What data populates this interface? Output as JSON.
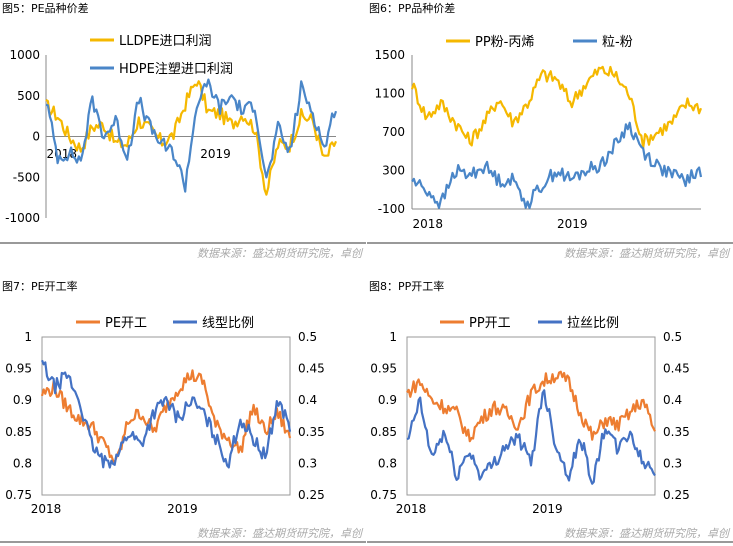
{
  "panels": [
    {
      "caption": "图5：PE品种价差",
      "source": "数据来源：盛达期货研究院，卓创"
    },
    {
      "caption": "图6：PP品种价差",
      "source": "数据来源：盛达期货研究院，卓创"
    },
    {
      "caption": "图7：PE开工率",
      "source": "数据来源：盛达期货研究院，卓创"
    },
    {
      "caption": "图8：PP开工率",
      "source": "数据来源：盛达期货研究院，卓创"
    }
  ],
  "chart_data": [
    {
      "type": "line",
      "x_tick_labels": [
        "2018",
        "2019"
      ],
      "ylim": [
        -1000,
        1000
      ],
      "yticks": [
        -1000,
        -500,
        0,
        500,
        1000
      ],
      "legend_position": "top-center",
      "series": [
        {
          "name": "LLDPE进口利润",
          "color": "#f5b800",
          "x": [
            0,
            0.04,
            0.08,
            0.12,
            0.16,
            0.2,
            0.24,
            0.28,
            0.32,
            0.36,
            0.4,
            0.44,
            0.48,
            0.52,
            0.56,
            0.6,
            0.64,
            0.68,
            0.72,
            0.76,
            0.8,
            0.84,
            0.88,
            0.92,
            0.96,
            1.0
          ],
          "values": [
            380,
            250,
            0,
            -150,
            120,
            150,
            -80,
            -100,
            200,
            80,
            -70,
            20,
            400,
            700,
            300,
            280,
            150,
            280,
            100,
            -700,
            -100,
            -100,
            250,
            200,
            -300,
            -50
          ]
        },
        {
          "name": "HDPE注塑进口利润",
          "color": "#4a86c8",
          "x": [
            0,
            0.04,
            0.08,
            0.12,
            0.16,
            0.2,
            0.24,
            0.28,
            0.32,
            0.36,
            0.4,
            0.44,
            0.48,
            0.52,
            0.56,
            0.6,
            0.64,
            0.68,
            0.72,
            0.76,
            0.8,
            0.84,
            0.88,
            0.92,
            0.96,
            1.0
          ],
          "values": [
            450,
            -250,
            -200,
            -300,
            450,
            0,
            200,
            -250,
            450,
            100,
            -100,
            -200,
            -600,
            400,
            650,
            350,
            500,
            300,
            400,
            -550,
            100,
            -200,
            600,
            300,
            -150,
            400
          ]
        }
      ]
    },
    {
      "type": "line",
      "x_tick_labels": [
        "2018",
        "2019"
      ],
      "ylim": [
        -100,
        1500
      ],
      "yticks": [
        -100,
        300,
        700,
        1100,
        1500
      ],
      "legend_position": "top-center",
      "series": [
        {
          "name": "PP粉-丙烯",
          "color": "#f5b800",
          "x": [
            0,
            0.05,
            0.1,
            0.15,
            0.2,
            0.25,
            0.3,
            0.35,
            0.4,
            0.45,
            0.5,
            0.55,
            0.6,
            0.65,
            0.7,
            0.75,
            0.8,
            0.85,
            0.9,
            0.95,
            1.0
          ],
          "values": [
            1200,
            850,
            1000,
            800,
            600,
            800,
            1050,
            800,
            1000,
            1300,
            1250,
            1000,
            1200,
            1350,
            1300,
            1100,
            600,
            700,
            800,
            1000,
            950
          ]
        },
        {
          "name": "粒-粉",
          "color": "#4a86c8",
          "x": [
            0,
            0.05,
            0.1,
            0.15,
            0.2,
            0.25,
            0.3,
            0.35,
            0.4,
            0.45,
            0.5,
            0.55,
            0.6,
            0.65,
            0.7,
            0.75,
            0.8,
            0.85,
            0.9,
            0.95,
            1.0
          ],
          "values": [
            200,
            100,
            -50,
            300,
            250,
            350,
            200,
            200,
            -50,
            150,
            300,
            200,
            300,
            350,
            550,
            780,
            500,
            350,
            250,
            200,
            300
          ]
        }
      ]
    },
    {
      "type": "line",
      "x_tick_labels": [
        "2018",
        "2019"
      ],
      "ylim": [
        0.75,
        1
      ],
      "yticks": [
        0.75,
        0.8,
        0.85,
        0.9,
        0.95,
        1
      ],
      "y2lim": [
        0.25,
        0.5
      ],
      "y2ticks": [
        0.25,
        0.3,
        0.35,
        0.4,
        0.45,
        0.5
      ],
      "legend_position": "top-center",
      "series": [
        {
          "name": "PE开工",
          "color": "#ed7d31",
          "axis": "left",
          "x": [
            0,
            0.05,
            0.1,
            0.15,
            0.2,
            0.25,
            0.3,
            0.35,
            0.4,
            0.45,
            0.5,
            0.55,
            0.6,
            0.65,
            0.7,
            0.75,
            0.8,
            0.85,
            0.9,
            0.95,
            1.0
          ],
          "values": [
            0.91,
            0.92,
            0.89,
            0.87,
            0.86,
            0.83,
            0.8,
            0.87,
            0.88,
            0.85,
            0.89,
            0.92,
            0.94,
            0.93,
            0.86,
            0.84,
            0.82,
            0.89,
            0.85,
            0.88,
            0.84
          ]
        },
        {
          "name": "线型比例",
          "color": "#4472c4",
          "axis": "right",
          "x": [
            0,
            0.05,
            0.1,
            0.15,
            0.2,
            0.25,
            0.3,
            0.35,
            0.4,
            0.45,
            0.5,
            0.55,
            0.6,
            0.65,
            0.7,
            0.75,
            0.8,
            0.85,
            0.9,
            0.95,
            1.0
          ],
          "values": [
            0.46,
            0.42,
            0.44,
            0.4,
            0.33,
            0.3,
            0.31,
            0.35,
            0.33,
            0.38,
            0.4,
            0.37,
            0.4,
            0.38,
            0.34,
            0.3,
            0.37,
            0.34,
            0.31,
            0.4,
            0.36
          ]
        }
      ]
    },
    {
      "type": "line",
      "x_tick_labels": [
        "2018",
        "2019"
      ],
      "ylim": [
        0.75,
        1
      ],
      "yticks": [
        0.75,
        0.8,
        0.85,
        0.9,
        0.95,
        1
      ],
      "y2lim": [
        0.25,
        0.5
      ],
      "y2ticks": [
        0.25,
        0.3,
        0.35,
        0.4,
        0.45,
        0.5
      ],
      "legend_position": "top-center",
      "series": [
        {
          "name": "PP开工",
          "color": "#ed7d31",
          "axis": "left",
          "x": [
            0,
            0.05,
            0.1,
            0.15,
            0.2,
            0.25,
            0.3,
            0.35,
            0.4,
            0.45,
            0.5,
            0.55,
            0.6,
            0.65,
            0.7,
            0.75,
            0.8,
            0.85,
            0.9,
            0.95,
            1.0
          ],
          "values": [
            0.91,
            0.93,
            0.9,
            0.89,
            0.88,
            0.84,
            0.87,
            0.89,
            0.88,
            0.86,
            0.91,
            0.93,
            0.94,
            0.93,
            0.88,
            0.84,
            0.87,
            0.86,
            0.88,
            0.9,
            0.85
          ]
        },
        {
          "name": "拉丝比例",
          "color": "#4472c4",
          "axis": "right",
          "x": [
            0,
            0.05,
            0.1,
            0.15,
            0.2,
            0.25,
            0.3,
            0.35,
            0.4,
            0.45,
            0.5,
            0.55,
            0.6,
            0.65,
            0.7,
            0.75,
            0.8,
            0.85,
            0.9,
            0.95,
            1.0
          ],
          "values": [
            0.33,
            0.4,
            0.31,
            0.35,
            0.28,
            0.32,
            0.28,
            0.3,
            0.33,
            0.34,
            0.3,
            0.42,
            0.33,
            0.28,
            0.34,
            0.27,
            0.36,
            0.32,
            0.35,
            0.3,
            0.29
          ]
        }
      ]
    }
  ]
}
